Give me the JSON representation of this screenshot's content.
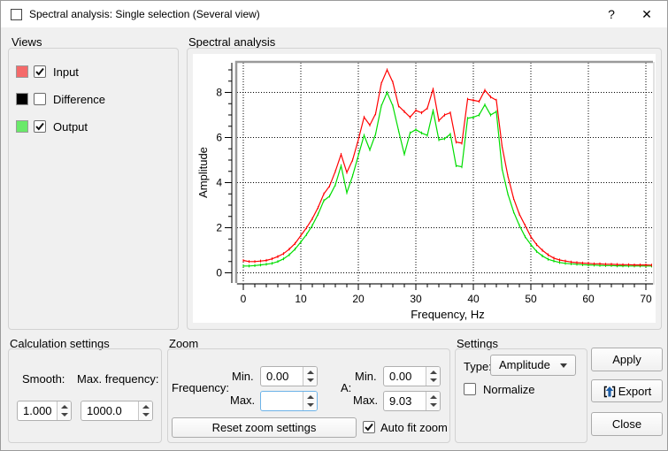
{
  "window": {
    "title": "Spectral analysis: Single selection (Several view)",
    "help_label": "?",
    "close_label": "✕"
  },
  "views": {
    "title": "Views",
    "items": [
      {
        "label": "Input",
        "checked": true,
        "color": "#f46a6a"
      },
      {
        "label": "Difference",
        "checked": false,
        "color": "#000000"
      },
      {
        "label": "Output",
        "checked": true,
        "color": "#69e969"
      }
    ]
  },
  "spectral": {
    "title": "Spectral analysis"
  },
  "chart_data": {
    "type": "line",
    "title": "Spectral analysis",
    "xlabel": "Frequency, Hz",
    "ylabel": "Amplitude",
    "xlim": [
      0,
      71
    ],
    "ylim": [
      -0.45,
      9.25
    ],
    "x_ticks": [
      0,
      10,
      20,
      30,
      40,
      50,
      60,
      70
    ],
    "y_ticks": [
      0,
      2,
      4,
      6,
      8
    ],
    "x_minor_step": 2,
    "y_minor_step": 0.5,
    "grid": "dotted",
    "legend_position": "none",
    "x_step": 1,
    "series": [
      {
        "name": "Input",
        "color": "#ff0000",
        "values": [
          0.55,
          0.5,
          0.5,
          0.52,
          0.55,
          0.62,
          0.72,
          0.85,
          1.05,
          1.3,
          1.65,
          2.0,
          2.4,
          2.9,
          3.5,
          3.85,
          4.5,
          5.25,
          4.45,
          5.0,
          5.9,
          6.9,
          6.55,
          7.05,
          8.4,
          9.0,
          8.45,
          7.4,
          7.15,
          6.9,
          7.2,
          7.1,
          7.3,
          8.15,
          6.75,
          7.0,
          7.1,
          5.8,
          5.75,
          7.7,
          7.65,
          7.6,
          8.1,
          7.8,
          7.65,
          5.6,
          4.3,
          3.3,
          2.6,
          2.1,
          1.6,
          1.25,
          1.0,
          0.8,
          0.65,
          0.57,
          0.52,
          0.48,
          0.45,
          0.43,
          0.42,
          0.4,
          0.4,
          0.38,
          0.38,
          0.37,
          0.36,
          0.36,
          0.35,
          0.35,
          0.35,
          0.34
        ]
      },
      {
        "name": "Output",
        "color": "#00dd00",
        "values": [
          0.3,
          0.3,
          0.32,
          0.35,
          0.38,
          0.42,
          0.5,
          0.62,
          0.8,
          1.05,
          1.37,
          1.7,
          2.1,
          2.6,
          3.2,
          3.4,
          3.9,
          4.75,
          3.55,
          4.3,
          5.2,
          6.1,
          5.45,
          6.15,
          7.4,
          8.0,
          7.4,
          6.3,
          5.25,
          6.2,
          6.35,
          6.2,
          6.1,
          7.2,
          5.9,
          5.95,
          6.15,
          4.75,
          4.7,
          6.85,
          6.9,
          7.0,
          7.45,
          7.0,
          7.15,
          4.6,
          3.5,
          2.7,
          2.1,
          1.6,
          1.25,
          0.95,
          0.75,
          0.6,
          0.52,
          0.46,
          0.42,
          0.4,
          0.38,
          0.36,
          0.35,
          0.34,
          0.33,
          0.32,
          0.32,
          0.31,
          0.31,
          0.3,
          0.3,
          0.3,
          0.3,
          0.3
        ]
      }
    ]
  },
  "calculation": {
    "title": "Calculation settings",
    "smooth_label": "Smooth:",
    "smooth_value": "1.000",
    "maxfreq_label": "Max. frequency:",
    "maxfreq_value": "1000.0"
  },
  "zoom": {
    "title": "Zoom",
    "frequency_label": "Frequency:",
    "a_label": "A:",
    "min_label": "Min.",
    "max_label": "Max.",
    "freq_min": "0.00",
    "freq_max": "",
    "a_min": "0.00",
    "a_max": "9.03",
    "reset_button": "Reset zoom settings",
    "autofit_label": "Auto fit zoom",
    "autofit_checked": true
  },
  "settings": {
    "title": "Settings",
    "type_label": "Type:",
    "type_value": "Amplitude",
    "normalize_label": "Normalize",
    "normalize_checked": false
  },
  "actions": {
    "apply": "Apply",
    "export": "Export",
    "close": "Close"
  }
}
